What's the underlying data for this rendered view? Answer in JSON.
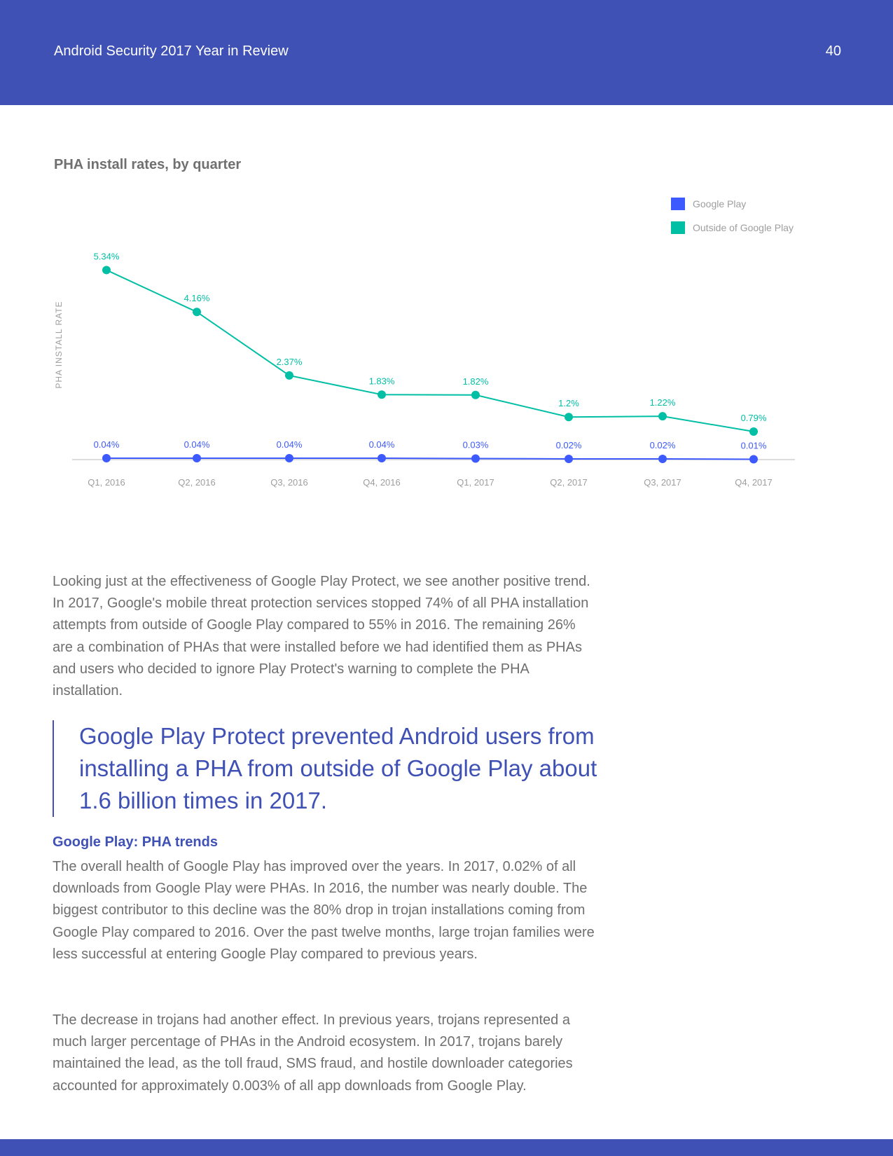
{
  "header": {
    "title": "Android Security 2017 Year in Review",
    "page_number": "40"
  },
  "chart_data": {
    "type": "line",
    "title": "PHA install rates, by quarter",
    "ylabel": "PHA INSTALL RATE",
    "xlabel": "",
    "categories": [
      "Q1, 2016",
      "Q2, 2016",
      "Q3, 2016",
      "Q4, 2016",
      "Q1, 2017",
      "Q2, 2017",
      "Q3, 2017",
      "Q4, 2017"
    ],
    "ylim": [
      0,
      6
    ],
    "legend_position": "top-right",
    "series": [
      {
        "name": "Google Play",
        "color": "#3d5afe",
        "values": [
          0.04,
          0.04,
          0.04,
          0.04,
          0.03,
          0.02,
          0.02,
          0.01
        ],
        "labels": [
          "0.04%",
          "0.04%",
          "0.04%",
          "0.04%",
          "0.03%",
          "0.02%",
          "0.02%",
          "0.01%"
        ]
      },
      {
        "name": "Outside of Google Play",
        "color": "#00bfa5",
        "values": [
          5.34,
          4.16,
          2.37,
          1.83,
          1.82,
          1.2,
          1.22,
          0.79
        ],
        "labels": [
          "5.34%",
          "4.16%",
          "2.37%",
          "1.83%",
          "1.82%",
          "1.2%",
          "1.22%",
          "0.79%"
        ]
      }
    ]
  },
  "content": {
    "paragraph1": "Looking just at the effectiveness of Google Play Protect, we see another positive trend. In 2017, Google's mobile threat protection services stopped 74% of all PHA installation attempts from outside of Google Play compared to 55% in 2016. The remaining 26% are a combination of PHAs that were installed before we had identified them as PHAs and users who decided to ignore Play Protect's warning to complete the PHA installation.",
    "quote": "Google Play Protect prevented Android users from installing a PHA from outside of Google Play about 1.6 billion times in 2017.",
    "section_heading": "Google Play: PHA trends",
    "paragraph2": "The overall health of Google Play has improved over the years. In 2017, 0.02% of all downloads from Google Play were PHAs. In 2016, the number was nearly double. The biggest contributor to this decline was the 80% drop in trojan installations coming from Google Play compared to 2016. Over the past twelve months, large trojan families were less successful at entering Google Play compared to previous years.",
    "paragraph3": "The decrease in trojans had another effect. In previous years, trojans represented a much larger percentage of PHAs in the Android ecosystem. In 2017, trojans barely maintained the lead, as the toll fraud, SMS fraud, and hostile downloader categories accounted for approximately 0.003% of all app downloads from Google Play."
  }
}
